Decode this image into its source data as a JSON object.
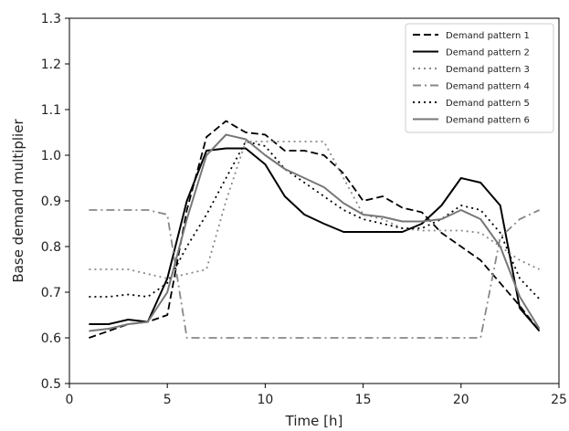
{
  "chart_data": {
    "type": "line",
    "xlabel": "Time [h]",
    "ylabel": "Base demand multiplier",
    "xlim": [
      0,
      25
    ],
    "ylim": [
      0.5,
      1.3
    ],
    "xticks": [
      "0",
      "5",
      "10",
      "15",
      "20",
      "25"
    ],
    "yticks": [
      "0.5",
      "0.6",
      "0.7",
      "0.8",
      "0.9",
      "1.0",
      "1.1",
      "1.2",
      "1.3"
    ],
    "grid": false,
    "legend_position": "top-right",
    "x": [
      1,
      2,
      3,
      4,
      5,
      6,
      7,
      8,
      9,
      10,
      11,
      12,
      13,
      14,
      15,
      16,
      17,
      18,
      19,
      20,
      21,
      22,
      23,
      24
    ],
    "series": [
      {
        "name": "Demand pattern 1",
        "color": "#000000",
        "style": "dashed",
        "values": [
          0.6,
          0.615,
          0.63,
          0.635,
          0.65,
          0.88,
          1.04,
          1.075,
          1.05,
          1.045,
          1.01,
          1.01,
          1.0,
          0.96,
          0.9,
          0.91,
          0.885,
          0.875,
          0.83,
          0.8,
          0.77,
          0.72,
          0.67,
          0.615
        ]
      },
      {
        "name": "Demand pattern 2",
        "color": "#000000",
        "style": "solid",
        "values": [
          0.63,
          0.63,
          0.64,
          0.635,
          0.73,
          0.9,
          1.01,
          1.015,
          1.015,
          0.98,
          0.91,
          0.87,
          0.85,
          0.832,
          0.832,
          0.832,
          0.832,
          0.85,
          0.89,
          0.95,
          0.94,
          0.89,
          0.665,
          0.615
        ]
      },
      {
        "name": "Demand pattern 3",
        "color": "#888888",
        "style": "dotted",
        "values": [
          0.75,
          0.75,
          0.75,
          0.74,
          0.73,
          0.74,
          0.75,
          0.9,
          1.03,
          1.03,
          1.03,
          1.03,
          1.03,
          0.95,
          0.87,
          0.86,
          0.84,
          0.835,
          0.835,
          0.835,
          0.83,
          0.8,
          0.77,
          0.75
        ]
      },
      {
        "name": "Demand pattern 4",
        "color": "#888888",
        "style": "dashdot",
        "values": [
          0.88,
          0.88,
          0.88,
          0.88,
          0.87,
          0.6,
          0.6,
          0.6,
          0.6,
          0.6,
          0.6,
          0.6,
          0.6,
          0.6,
          0.6,
          0.6,
          0.6,
          0.6,
          0.6,
          0.6,
          0.6,
          0.82,
          0.86,
          0.88
        ]
      },
      {
        "name": "Demand pattern 5",
        "color": "#000000",
        "style": "dotted",
        "values": [
          0.69,
          0.69,
          0.695,
          0.69,
          0.72,
          0.8,
          0.87,
          0.95,
          1.03,
          1.02,
          0.97,
          0.94,
          0.91,
          0.88,
          0.86,
          0.85,
          0.84,
          0.84,
          0.86,
          0.89,
          0.88,
          0.83,
          0.73,
          0.685
        ]
      },
      {
        "name": "Demand pattern 6",
        "color": "#777777",
        "style": "solid",
        "values": [
          0.615,
          0.62,
          0.63,
          0.635,
          0.7,
          0.86,
          1.0,
          1.045,
          1.035,
          1.0,
          0.97,
          0.95,
          0.93,
          0.895,
          0.87,
          0.865,
          0.855,
          0.855,
          0.86,
          0.88,
          0.86,
          0.8,
          0.69,
          0.62
        ]
      }
    ]
  }
}
